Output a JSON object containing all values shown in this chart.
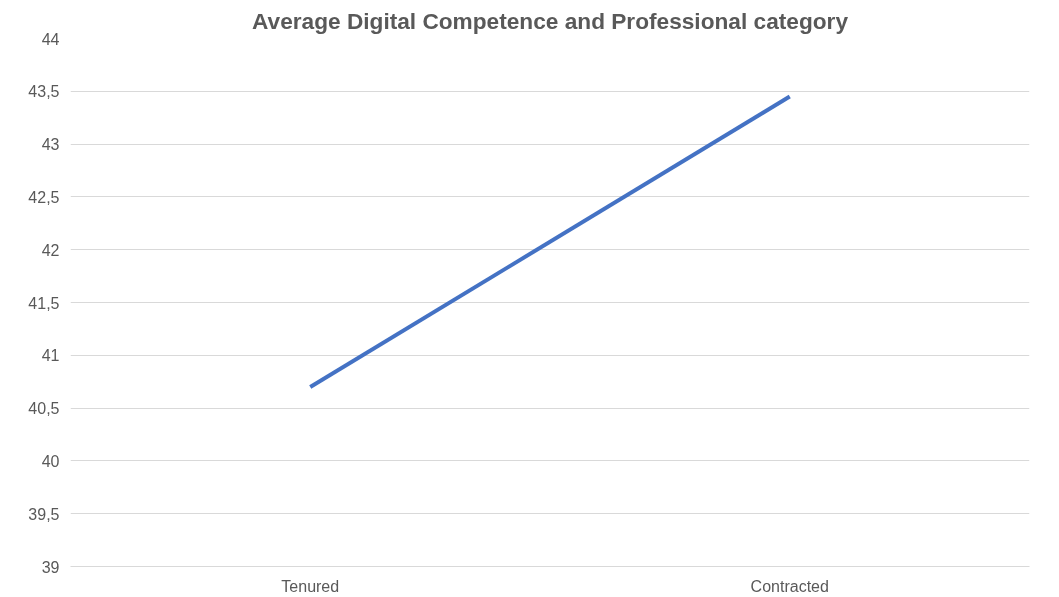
{
  "chart_data": {
    "type": "line",
    "title": "Average Digital Competence and Professional category",
    "categories": [
      "Tenured",
      "Contracted"
    ],
    "series": [
      {
        "color": "#4472c4",
        "values": [
          40.7,
          43.45
        ]
      }
    ],
    "ylim": [
      39,
      44
    ],
    "yticks": [
      39,
      {
        "value": 39.5,
        "label": "39,5"
      },
      40,
      {
        "value": 40.5,
        "label": "40,5"
      },
      41,
      {
        "value": 41.5,
        "label": "41,5"
      },
      42,
      {
        "value": 42.5,
        "label": "42,5"
      },
      43,
      {
        "value": 43.5,
        "label": "43,5"
      },
      44
    ],
    "grid": "y",
    "marker": "none",
    "line_style": "solid"
  }
}
